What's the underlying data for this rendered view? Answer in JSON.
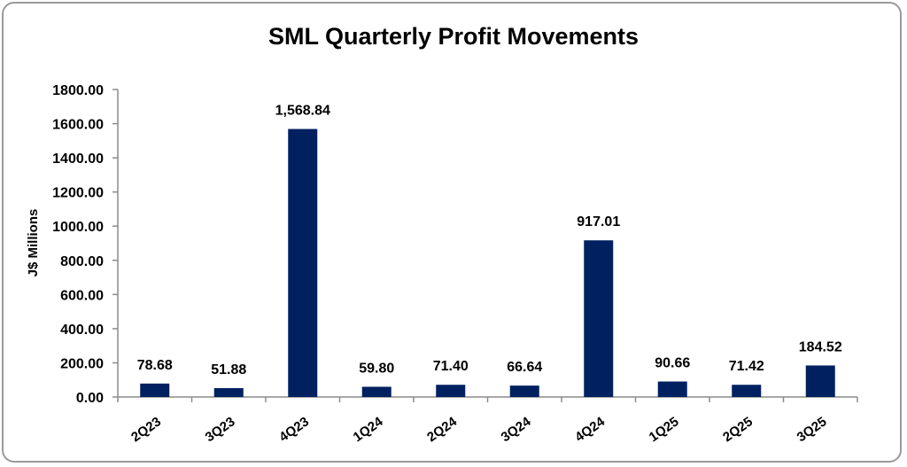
{
  "chart_data": {
    "type": "bar",
    "title": "SML Quarterly Profit Movements",
    "xlabel": "",
    "ylabel": "J$ Millions",
    "categories": [
      "2Q23",
      "3Q23",
      "4Q23",
      "1Q24",
      "2Q24",
      "3Q24",
      "4Q24",
      "1Q25",
      "2Q25",
      "3Q25"
    ],
    "values": [
      78.68,
      51.88,
      1568.84,
      59.8,
      71.4,
      66.64,
      917.01,
      90.66,
      71.42,
      184.52
    ],
    "data_labels": [
      "78.68",
      "51.88",
      "1,568.84",
      "59.80",
      "71.40",
      "66.64",
      "917.01",
      "90.66",
      "71.42",
      "184.52"
    ],
    "yticks": [
      "0.00",
      "200.00",
      "400.00",
      "600.00",
      "800.00",
      "1000.00",
      "1200.00",
      "1400.00",
      "1600.00",
      "1800.00"
    ],
    "ylim": [
      0,
      1800
    ],
    "grid": false,
    "legend": "none",
    "bar_color": "#002060"
  }
}
